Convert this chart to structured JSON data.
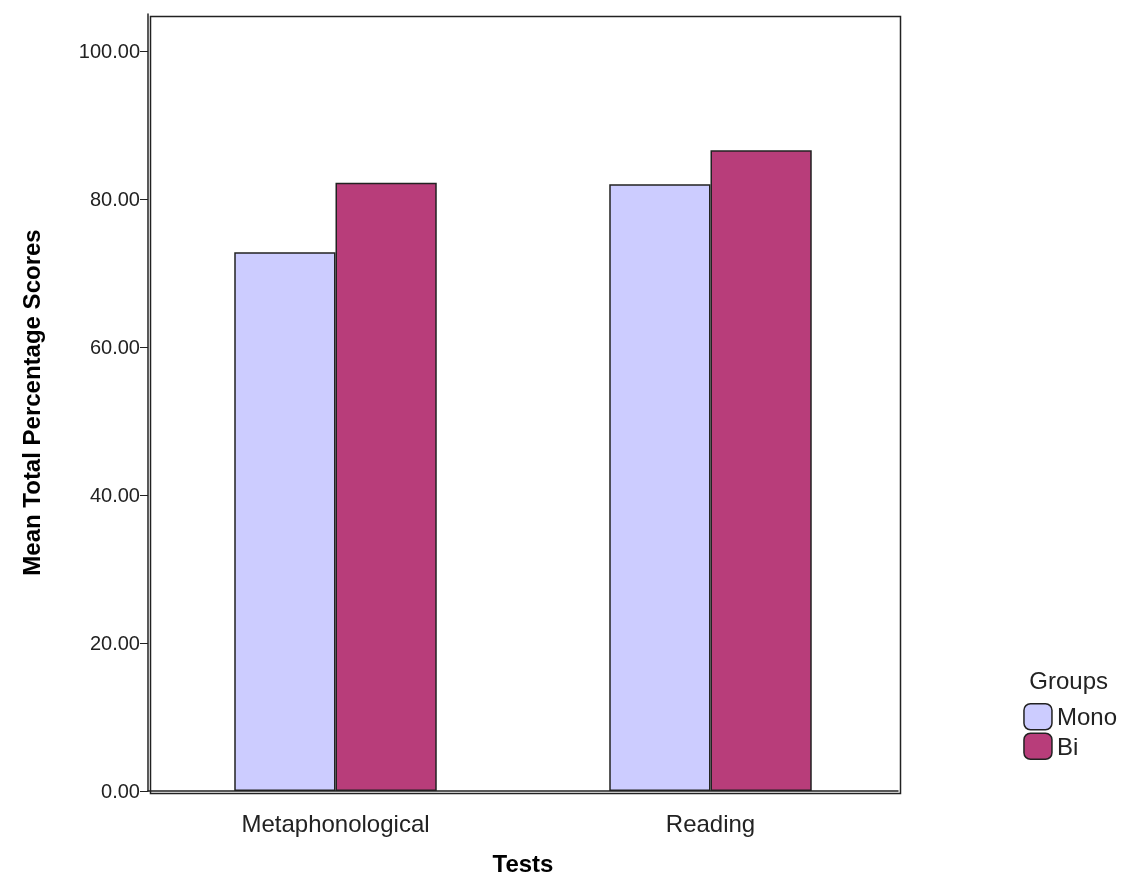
{
  "chart_data": {
    "type": "bar",
    "xlabel": "Tests",
    "ylabel": "Mean Total Percentage Scores",
    "legend_title": "Groups",
    "categories": [
      "Metaphonological",
      "Reading"
    ],
    "series": [
      {
        "name": "Mono",
        "color": "#ccccff",
        "values": [
          72.8,
          82.0
        ]
      },
      {
        "name": "Bi",
        "color": "#b83d7a",
        "values": [
          82.2,
          86.6
        ]
      }
    ],
    "ylim": [
      0,
      105
    ],
    "yticks": [
      {
        "value": 0,
        "label": "0.00"
      },
      {
        "value": 20,
        "label": "20.00"
      },
      {
        "value": 40,
        "label": "40.00"
      },
      {
        "value": 60,
        "label": "60.00"
      },
      {
        "value": 80,
        "label": "80.00"
      },
      {
        "value": 100,
        "label": "100.00"
      }
    ],
    "grid": false,
    "legend": "right"
  }
}
